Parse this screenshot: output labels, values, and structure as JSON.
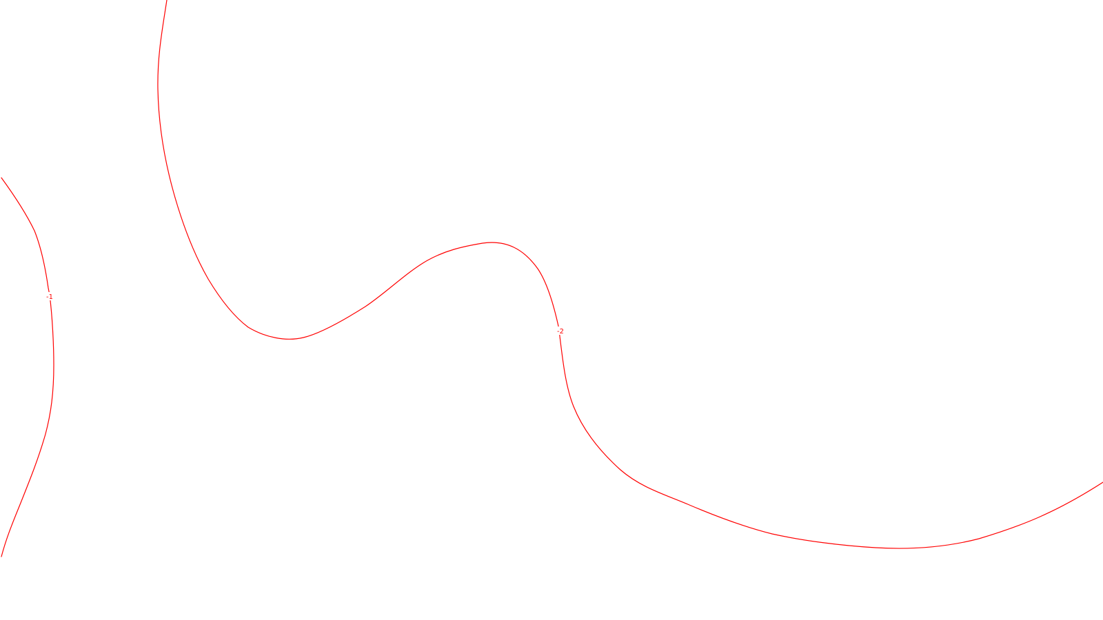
{
  "map": {
    "background_color": "#ffffff",
    "line_color": "#ff0000",
    "contours": [
      {
        "id": "contour-minus-1",
        "label": "-1"
      },
      {
        "id": "contour-minus-2",
        "label": "-2"
      }
    ]
  }
}
